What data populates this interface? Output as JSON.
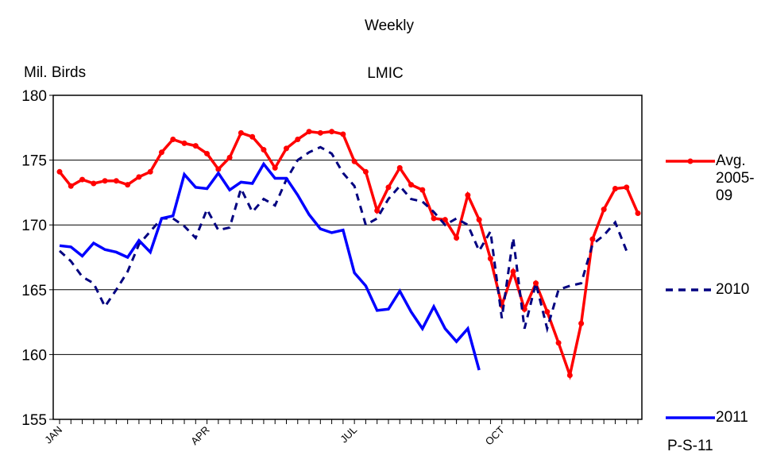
{
  "chart_data": {
    "type": "line",
    "title": "Weekly",
    "subtitle": "LMIC",
    "y_label": "Mil. Birds",
    "note": "P-S-11",
    "categories": [
      "JAN",
      null,
      null,
      null,
      null,
      null,
      null,
      null,
      null,
      null,
      null,
      null,
      null,
      "APR",
      null,
      null,
      null,
      null,
      null,
      null,
      null,
      null,
      null,
      null,
      null,
      null,
      "JUL",
      null,
      null,
      null,
      null,
      null,
      null,
      null,
      null,
      null,
      null,
      null,
      null,
      "OCT",
      null,
      null,
      null,
      null,
      null,
      null,
      null,
      null,
      null,
      null,
      null,
      null
    ],
    "series": [
      {
        "name": "Avg. 2005-09",
        "color": "#ff0000",
        "dash": false,
        "markers": true,
        "values": [
          174.1,
          173.0,
          173.5,
          173.2,
          173.4,
          173.4,
          173.1,
          173.7,
          174.1,
          175.6,
          176.6,
          176.3,
          176.1,
          175.5,
          174.3,
          175.2,
          177.1,
          176.8,
          175.8,
          174.4,
          175.9,
          176.6,
          177.2,
          177.1,
          177.2,
          177.0,
          174.9,
          174.1,
          171.1,
          172.9,
          174.4,
          173.1,
          172.7,
          170.5,
          170.4,
          169.0,
          172.3,
          170.4,
          167.4,
          163.8,
          166.4,
          163.5,
          165.5,
          163.3,
          160.9,
          158.4,
          162.4,
          168.9,
          171.2,
          172.8,
          172.9,
          170.9
        ]
      },
      {
        "name": "2010",
        "color": "#000080",
        "dash": true,
        "markers": false,
        "values": [
          168.0,
          167.2,
          166.0,
          165.5,
          163.7,
          165.0,
          166.4,
          168.5,
          169.5,
          170.5,
          170.5,
          169.9,
          169.0,
          171.2,
          169.6,
          169.8,
          172.8,
          171.0,
          172.0,
          171.5,
          173.5,
          175.0,
          175.6,
          176.0,
          175.5,
          174.0,
          173.0,
          170.0,
          170.5,
          172.0,
          173.0,
          172.0,
          171.8,
          171.0,
          170.0,
          170.5,
          170.0,
          168.0,
          169.5,
          162.8,
          169.0,
          162.0,
          165.5,
          162.0,
          165.0,
          165.3,
          165.5,
          168.5,
          169.2,
          170.2,
          168.0,
          null
        ]
      },
      {
        "name": "2011",
        "color": "#0000ff",
        "dash": false,
        "markers": false,
        "values": [
          168.4,
          168.3,
          167.6,
          168.6,
          168.1,
          167.9,
          167.5,
          168.8,
          167.9,
          170.5,
          170.7,
          173.9,
          172.9,
          172.8,
          174.0,
          172.7,
          173.3,
          173.2,
          174.7,
          173.6,
          173.6,
          172.3,
          170.8,
          169.7,
          169.4,
          169.6,
          166.3,
          165.3,
          163.4,
          163.5,
          164.9,
          163.3,
          162.0,
          163.7,
          162.0,
          161.0,
          162.0,
          158.8,
          null,
          null,
          null,
          null,
          null,
          null,
          null,
          null,
          null,
          null,
          null,
          null,
          null,
          null
        ]
      }
    ],
    "ylim": [
      155,
      180
    ],
    "yticks": [
      155,
      160,
      165,
      170,
      175,
      180
    ],
    "grid": true
  }
}
